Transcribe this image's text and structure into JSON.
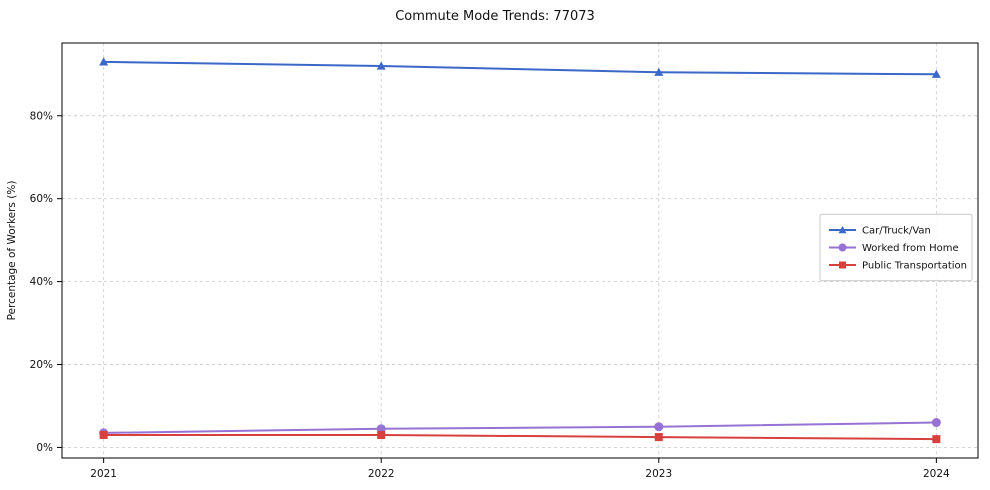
{
  "title": "Commute Mode Trends: 77073",
  "chart_data": {
    "type": "line",
    "title": "Commute Mode Trends: 77073",
    "xlabel": "",
    "ylabel": "Percentage of Workers (%)",
    "x": [
      2021,
      2022,
      2023,
      2024
    ],
    "xtick_labels": [
      "2021",
      "2022",
      "2023",
      "2024"
    ],
    "yticks": [
      0,
      20,
      40,
      60,
      80
    ],
    "ytick_suffix": "%",
    "ylim": [
      -2.55,
      97.55
    ],
    "xlim": [
      2020.85,
      2024.15
    ],
    "grid": true,
    "grid_style": "dashed",
    "legend_position": "center-right",
    "series": [
      {
        "name": "Car/Truck/Van",
        "values": [
          93,
          92,
          90.5,
          90
        ],
        "color": "#3a67c8",
        "marker": "triangle"
      },
      {
        "name": "Worked from Home",
        "values": [
          3.5,
          4.5,
          5,
          6
        ],
        "color": "#9672d4",
        "marker": "circle"
      },
      {
        "name": "Public Transportation",
        "values": [
          3,
          3,
          2.5,
          2
        ],
        "color": "#d8403e",
        "marker": "square"
      }
    ]
  }
}
